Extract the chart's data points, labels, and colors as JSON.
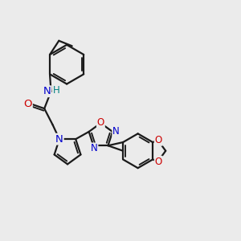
{
  "background_color": "#ebebeb",
  "bond_color": "#1a1a1a",
  "bond_width": 1.6,
  "atom_colors": {
    "N": "#0000cc",
    "O": "#cc0000",
    "H": "#008080",
    "C": "#1a1a1a"
  },
  "font_size_atom": 8.5
}
